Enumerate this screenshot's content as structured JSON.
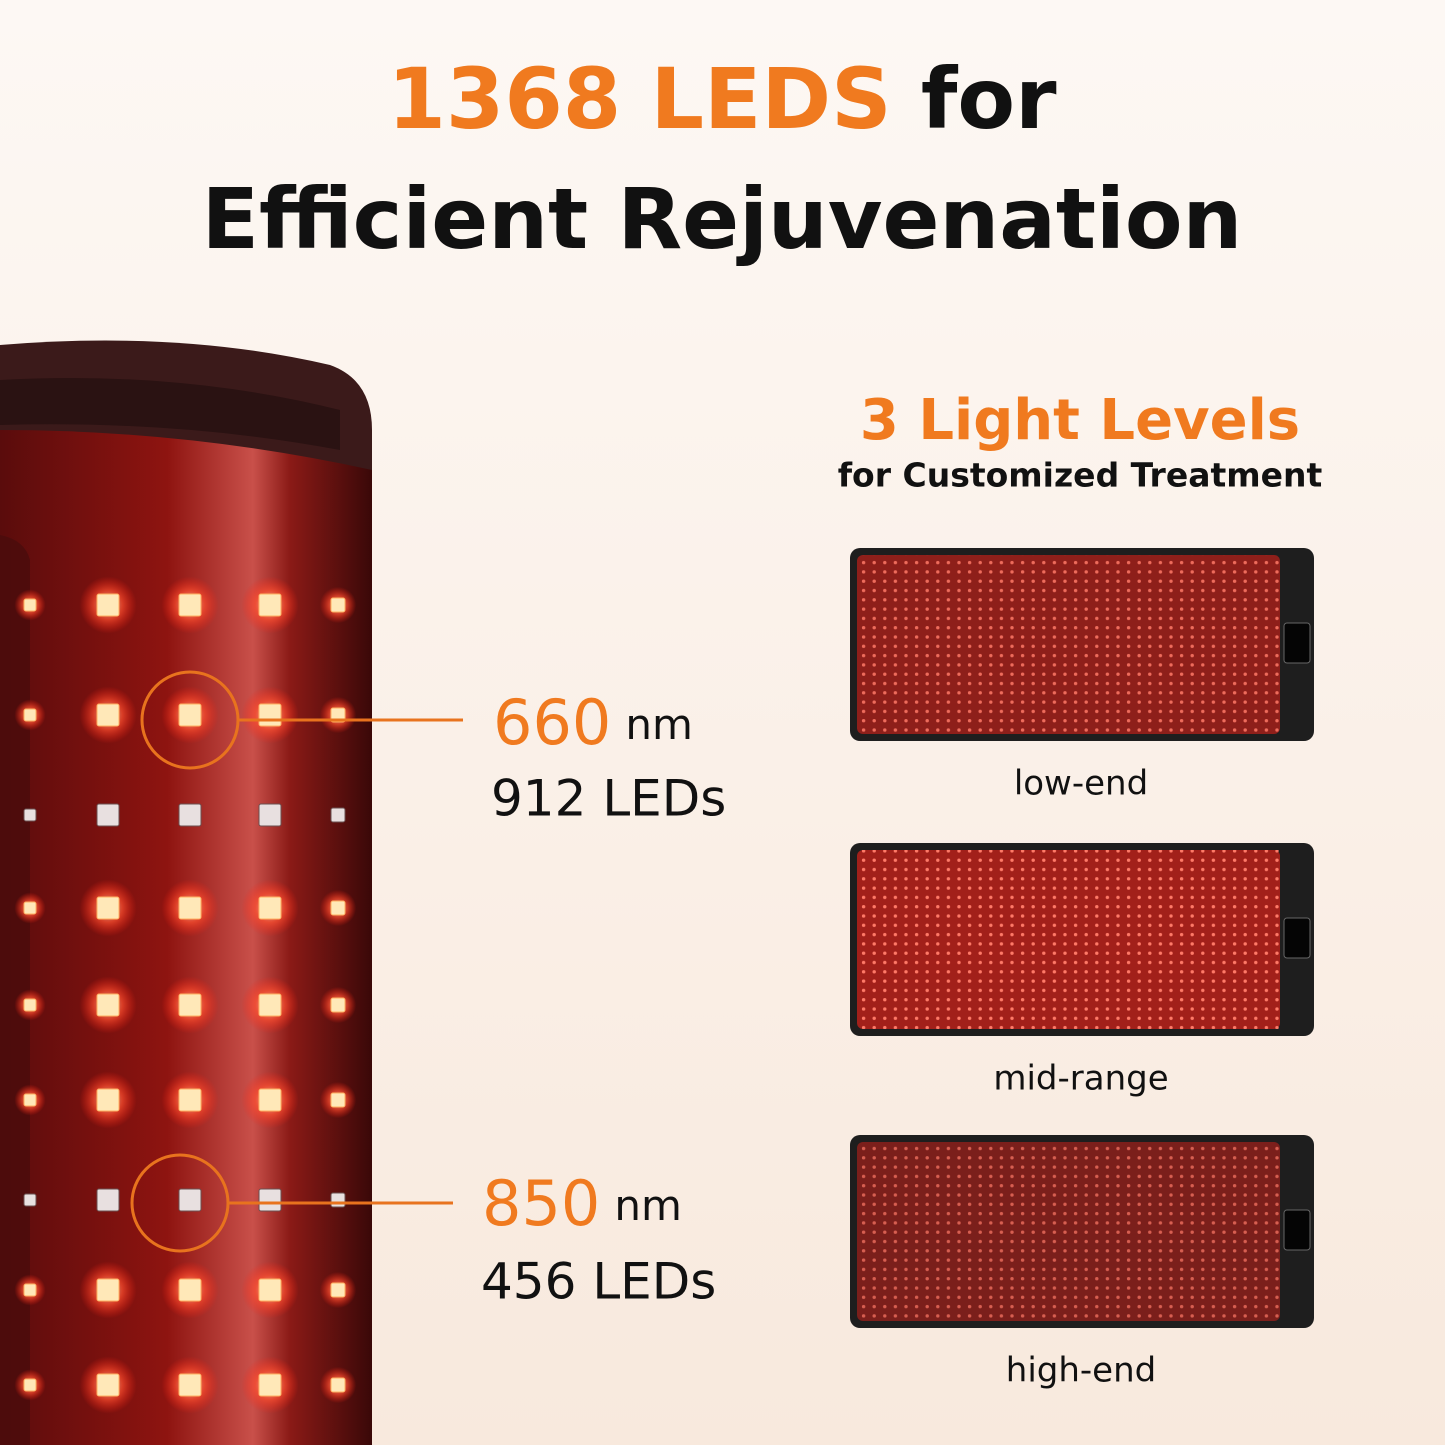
{
  "header": {
    "title_highlight": "1368 LEDS",
    "title_rest": "for",
    "subtitle": "Efficient Rejuvenation"
  },
  "wavelengths": [
    {
      "value": "660",
      "unit": "nm",
      "count": "912 LEDs"
    },
    {
      "value": "850",
      "unit": "nm",
      "count": "456 LEDs"
    }
  ],
  "light_levels": {
    "title": "3 Light Levels",
    "subtitle": "for Customized Treatment",
    "levels": [
      "low-end",
      "mid-range",
      "high-end"
    ]
  }
}
